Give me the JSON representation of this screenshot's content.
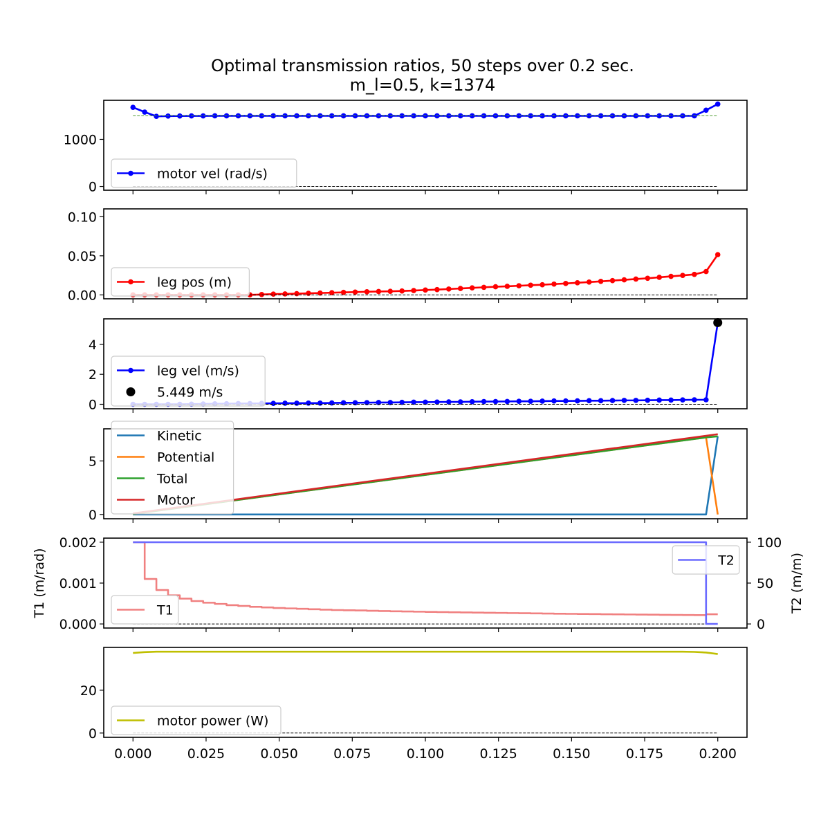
{
  "chart_data": {
    "type": "line",
    "title": "Optimal transmission ratios, 50 steps over 0.2 sec.",
    "subtitle": "m_l=0.5, k=1374",
    "xlim": [
      -0.01,
      0.21
    ],
    "xticks": [
      0.0,
      0.025,
      0.05,
      0.075,
      0.1,
      0.125,
      0.15,
      0.175,
      0.2
    ],
    "xtick_labels": [
      "0.000",
      "0.025",
      "0.050",
      "0.075",
      "0.100",
      "0.125",
      "0.150",
      "0.175",
      "0.200"
    ],
    "panels": [
      {
        "name": "motor-velocity",
        "ylim": [
          -80,
          1830
        ],
        "yticks": [
          0,
          1000
        ],
        "ytick_labels": [
          "0",
          "1000"
        ],
        "legend_position": "lower-left",
        "series": [
          {
            "name": "motor vel (rad/s)",
            "style": "line-dots",
            "color": "#0000ff",
            "x": [
              0.0,
              0.004,
              0.008,
              0.012,
              0.016,
              0.02,
              0.024,
              0.028,
              0.032,
              0.036,
              0.04,
              0.044,
              0.048,
              0.052,
              0.056,
              0.06,
              0.064,
              0.068,
              0.072,
              0.076,
              0.08,
              0.084,
              0.088,
              0.092,
              0.096,
              0.1,
              0.104,
              0.108,
              0.112,
              0.116,
              0.12,
              0.124,
              0.128,
              0.132,
              0.136,
              0.14,
              0.144,
              0.148,
              0.152,
              0.156,
              0.16,
              0.164,
              0.168,
              0.172,
              0.176,
              0.18,
              0.184,
              0.188,
              0.192,
              0.196,
              0.2
            ],
            "y": [
              1680,
              1580,
              1490,
              1495,
              1497,
              1498,
              1499,
              1500,
              1500,
              1500,
              1500,
              1500,
              1500,
              1500,
              1500,
              1500,
              1500,
              1500,
              1500,
              1500,
              1500,
              1500,
              1500,
              1500,
              1500,
              1500,
              1500,
              1500,
              1500,
              1500,
              1500,
              1500,
              1500,
              1500,
              1500,
              1500,
              1500,
              1500,
              1500,
              1500,
              1500,
              1500,
              1500,
              1500,
              1500,
              1500,
              1500,
              1500,
              1500,
              1620,
              1750
            ]
          },
          {
            "style": "dashed",
            "color": "#4a9a2e",
            "x": [
              0.0,
              0.2
            ],
            "y": [
              1500,
              1500
            ]
          },
          {
            "style": "dashed",
            "color": "#000000",
            "x": [
              0.0,
              0.2
            ],
            "y": [
              0,
              0
            ]
          }
        ]
      },
      {
        "name": "leg-position",
        "ylim": [
          -0.005,
          0.11
        ],
        "yticks": [
          0.0,
          0.05,
          0.1
        ],
        "ytick_labels": [
          "0.00",
          "0.05",
          "0.10"
        ],
        "legend_position": "lower-left",
        "series": [
          {
            "name": "leg pos (m)",
            "style": "line-dots",
            "color": "#ff0000",
            "x": [
              0.0,
              0.004,
              0.008,
              0.012,
              0.016,
              0.02,
              0.024,
              0.028,
              0.032,
              0.036,
              0.04,
              0.044,
              0.048,
              0.052,
              0.056,
              0.06,
              0.064,
              0.068,
              0.072,
              0.076,
              0.08,
              0.084,
              0.088,
              0.092,
              0.096,
              0.1,
              0.104,
              0.108,
              0.112,
              0.116,
              0.12,
              0.124,
              0.128,
              0.132,
              0.136,
              0.14,
              0.144,
              0.148,
              0.152,
              0.156,
              0.16,
              0.164,
              0.168,
              0.172,
              0.176,
              0.18,
              0.184,
              0.188,
              0.192,
              0.196,
              0.2
            ],
            "y": [
              0.0,
              0.0,
              0.0,
              0.0,
              0.0,
              0.0,
              0.0,
              0.0,
              0.0,
              0.0,
              0.0,
              0.0005,
              0.001,
              0.0013,
              0.0016,
              0.002,
              0.0024,
              0.0028,
              0.0032,
              0.0036,
              0.004,
              0.0043,
              0.0046,
              0.005,
              0.0056,
              0.0062,
              0.0068,
              0.0075,
              0.0082,
              0.009,
              0.0097,
              0.0104,
              0.011,
              0.0117,
              0.0124,
              0.013,
              0.0138,
              0.0146,
              0.0155,
              0.0164,
              0.0173,
              0.0183,
              0.0193,
              0.0203,
              0.0213,
              0.0225,
              0.0237,
              0.0249,
              0.0262,
              0.0299,
              0.0515
            ]
          },
          {
            "style": "dashed",
            "color": "#000000",
            "x": [
              0.0,
              0.2
            ],
            "y": [
              0,
              0
            ]
          }
        ]
      },
      {
        "name": "leg-velocity",
        "ylim": [
          -0.3,
          5.7
        ],
        "yticks": [
          0,
          2,
          4
        ],
        "ytick_labels": [
          "0",
          "2",
          "4"
        ],
        "legend_position": "lower-left",
        "series": [
          {
            "name": "leg vel (m/s)",
            "style": "line-dots",
            "color": "#0000ff",
            "x": [
              0.0,
              0.004,
              0.008,
              0.012,
              0.016,
              0.02,
              0.024,
              0.028,
              0.032,
              0.036,
              0.04,
              0.044,
              0.048,
              0.052,
              0.056,
              0.06,
              0.064,
              0.068,
              0.072,
              0.076,
              0.08,
              0.084,
              0.088,
              0.092,
              0.096,
              0.1,
              0.104,
              0.108,
              0.112,
              0.116,
              0.12,
              0.124,
              0.128,
              0.132,
              0.136,
              0.14,
              0.144,
              0.148,
              0.152,
              0.156,
              0.16,
              0.164,
              0.168,
              0.172,
              0.176,
              0.18,
              0.184,
              0.188,
              0.192,
              0.196,
              0.2
            ],
            "y": [
              0.0,
              0.0,
              0.0,
              0.0,
              0.0,
              0.01,
              0.02,
              0.03,
              0.04,
              0.05,
              0.05,
              0.06,
              0.06,
              0.07,
              0.07,
              0.08,
              0.08,
              0.09,
              0.1,
              0.1,
              0.11,
              0.12,
              0.12,
              0.13,
              0.14,
              0.14,
              0.15,
              0.16,
              0.16,
              0.17,
              0.18,
              0.18,
              0.19,
              0.2,
              0.2,
              0.21,
              0.22,
              0.22,
              0.23,
              0.24,
              0.24,
              0.25,
              0.26,
              0.26,
              0.27,
              0.28,
              0.28,
              0.29,
              0.3,
              0.3,
              5.449
            ]
          },
          {
            "name": "5.449 m/s",
            "style": "marker",
            "color": "#000000",
            "x": [
              0.2
            ],
            "y": [
              5.449
            ]
          },
          {
            "style": "dashed",
            "color": "#000000",
            "x": [
              0.0,
              0.2
            ],
            "y": [
              0,
              0
            ]
          }
        ]
      },
      {
        "name": "energy",
        "ylim": [
          -0.4,
          8.0
        ],
        "yticks": [
          0,
          5
        ],
        "ytick_labels": [
          "0",
          "5"
        ],
        "legend_position": "upper-left",
        "series": [
          {
            "name": "Kinetic",
            "style": "line",
            "color": "#1f77b4",
            "x": [
              0.0,
              0.196,
              0.2
            ],
            "y": [
              0.0,
              0.0,
              7.3
            ]
          },
          {
            "name": "Potential",
            "style": "line",
            "color": "#ff7f0e",
            "x": [
              0.0,
              0.196,
              0.2
            ],
            "y": [
              0.05,
              7.2,
              0.0
            ]
          },
          {
            "name": "Total",
            "style": "line",
            "color": "#2ca02c",
            "x": [
              0.0,
              0.196,
              0.2
            ],
            "y": [
              0.05,
              7.2,
              7.3
            ]
          },
          {
            "name": "Motor",
            "style": "line",
            "color": "#d62728",
            "x": [
              0.0,
              0.2
            ],
            "y": [
              0.1,
              7.5
            ]
          }
        ]
      },
      {
        "name": "transmission",
        "ylim": [
          -0.0001,
          0.0021
        ],
        "yticks": [
          0.0,
          0.001,
          0.002
        ],
        "ytick_labels": [
          "0.000",
          "0.001",
          "0.002"
        ],
        "ylabel": "T1 (m/rad)",
        "legend_position": "center-left",
        "series": [
          {
            "name": "T1",
            "style": "step",
            "color": "#f08080",
            "x": [
              0.0,
              0.004,
              0.008,
              0.012,
              0.016,
              0.02,
              0.024,
              0.028,
              0.032,
              0.036,
              0.04,
              0.044,
              0.048,
              0.052,
              0.056,
              0.06,
              0.064,
              0.068,
              0.072,
              0.076,
              0.08,
              0.084,
              0.088,
              0.092,
              0.096,
              0.1,
              0.104,
              0.108,
              0.112,
              0.116,
              0.12,
              0.124,
              0.128,
              0.132,
              0.136,
              0.14,
              0.144,
              0.148,
              0.152,
              0.156,
              0.16,
              0.164,
              0.168,
              0.172,
              0.176,
              0.18,
              0.184,
              0.188,
              0.192,
              0.196,
              0.2
            ],
            "y": [
              0.002,
              0.0011,
              0.00083,
              0.0007,
              0.00062,
              0.00056,
              0.00052,
              0.00049,
              0.00046,
              0.00044,
              0.00042,
              0.000405,
              0.00039,
              0.00038,
              0.00037,
              0.00036,
              0.00035,
              0.00034,
              0.000335,
              0.00033,
              0.000322,
              0.000316,
              0.00031,
              0.000305,
              0.0003,
              0.000295,
              0.00029,
              0.000286,
              0.000282,
              0.000278,
              0.000274,
              0.00027,
              0.000266,
              0.000262,
              0.000258,
              0.000254,
              0.00025,
              0.000247,
              0.000244,
              0.000241,
              0.000238,
              0.000235,
              0.000232,
              0.000229,
              0.000226,
              0.000223,
              0.00022,
              0.000218,
              0.000216,
              0.000238,
              0.000238
            ]
          },
          {
            "style": "dashed",
            "color": "#000000",
            "x": [
              0.0,
              0.2
            ],
            "y": [
              0,
              0
            ]
          }
        ],
        "secondary_axis": {
          "ylim": [
            -5,
            105
          ],
          "yticks": [
            0,
            50,
            100
          ],
          "ytick_labels": [
            "0",
            "50",
            "100"
          ],
          "ylabel": "T2 (m/m)",
          "legend_position": "upper-right",
          "series": [
            {
              "name": "T2",
              "style": "step",
              "color": "#6b6bff",
              "x": [
                0.0,
                0.196,
                0.2
              ],
              "y": [
                100,
                0,
                0
              ]
            }
          ]
        }
      },
      {
        "name": "motor-power",
        "ylim": [
          -2,
          40
        ],
        "yticks": [
          0,
          20
        ],
        "ytick_labels": [
          "0",
          "20"
        ],
        "legend_position": "lower-left",
        "series": [
          {
            "name": "motor power (W)",
            "style": "line",
            "color": "#bfbf00",
            "x": [
              0.0,
              0.004,
              0.008,
              0.012,
              0.1,
              0.18,
              0.188,
              0.192,
              0.196,
              0.2
            ],
            "y": [
              37.4,
              37.8,
              38.0,
              38.0,
              38.0,
              38.0,
              38.0,
              37.9,
              37.6,
              36.9
            ]
          },
          {
            "style": "dashed",
            "color": "#000000",
            "x": [
              0.0,
              0.2
            ],
            "y": [
              0,
              0
            ]
          }
        ]
      }
    ]
  }
}
